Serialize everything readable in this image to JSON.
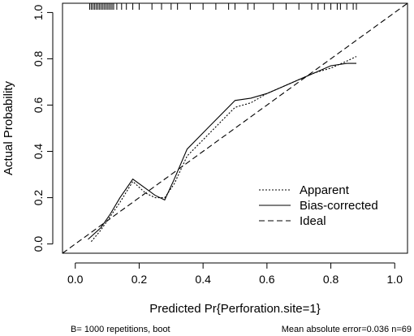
{
  "chart_data": {
    "type": "line",
    "title": "",
    "xlabel": "Predicted Pr{Perforation.site=1}",
    "ylabel": "Actual Probability",
    "xlim": [
      -0.04,
      1.04
    ],
    "ylim": [
      -0.04,
      1.04
    ],
    "xticks": [
      0.0,
      0.2,
      0.4,
      0.6,
      0.8,
      1.0
    ],
    "yticks": [
      0.0,
      0.2,
      0.4,
      0.6,
      0.8,
      1.0
    ],
    "xtick_labels": [
      "0.0",
      "0.2",
      "0.4",
      "0.6",
      "0.8",
      "1.0"
    ],
    "ytick_labels": [
      "0.0",
      "0.2",
      "0.4",
      "0.6",
      "0.8",
      "1.0"
    ],
    "grid": false,
    "legend": "bottom-right",
    "series": [
      {
        "name": "Apparent",
        "style": "dotted",
        "x": [
          0.05,
          0.08,
          0.11,
          0.14,
          0.18,
          0.22,
          0.25,
          0.28,
          0.31,
          0.35,
          0.4,
          0.45,
          0.5,
          0.55,
          0.6,
          0.65,
          0.7,
          0.75,
          0.8,
          0.85,
          0.88
        ],
        "y": [
          0.01,
          0.06,
          0.12,
          0.18,
          0.27,
          0.22,
          0.2,
          0.2,
          0.26,
          0.38,
          0.45,
          0.52,
          0.59,
          0.61,
          0.65,
          0.68,
          0.71,
          0.74,
          0.76,
          0.79,
          0.81
        ]
      },
      {
        "name": "Bias-corrected",
        "style": "solid",
        "x": [
          0.04,
          0.08,
          0.11,
          0.14,
          0.18,
          0.22,
          0.25,
          0.28,
          0.31,
          0.35,
          0.4,
          0.45,
          0.5,
          0.55,
          0.6,
          0.65,
          0.7,
          0.75,
          0.8,
          0.85,
          0.88
        ],
        "y": [
          0.02,
          0.07,
          0.13,
          0.2,
          0.28,
          0.24,
          0.21,
          0.19,
          0.28,
          0.41,
          0.48,
          0.55,
          0.62,
          0.63,
          0.65,
          0.68,
          0.71,
          0.74,
          0.77,
          0.78,
          0.78
        ]
      },
      {
        "name": "Ideal",
        "style": "dashed",
        "x": [
          -0.04,
          1.04
        ],
        "y": [
          -0.04,
          1.04
        ]
      }
    ],
    "rug_x": [
      0.045,
      0.05,
      0.055,
      0.06,
      0.065,
      0.07,
      0.075,
      0.08,
      0.085,
      0.09,
      0.095,
      0.1,
      0.105,
      0.11,
      0.115,
      0.12,
      0.13,
      0.145,
      0.16,
      0.18,
      0.2,
      0.24,
      0.27,
      0.3,
      0.32,
      0.36,
      0.4,
      0.44,
      0.48,
      0.5,
      0.54,
      0.56,
      0.62,
      0.66,
      0.7,
      0.74,
      0.76,
      0.78,
      0.8,
      0.82,
      0.83,
      0.85,
      0.87,
      0.88
    ]
  },
  "footnotes": {
    "left": "B= 1000 repetitions, boot",
    "right": "Mean absolute error=0.036 n=69"
  }
}
